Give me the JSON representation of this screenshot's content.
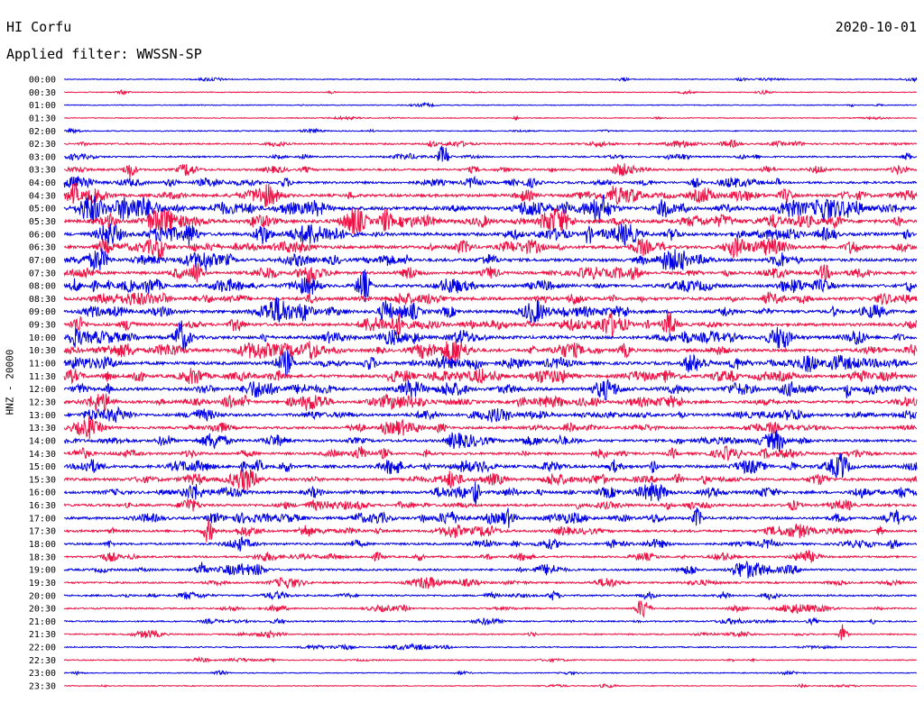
{
  "header": {
    "station": "HI Corfu",
    "date": "2020-10-01",
    "filter_label": "Applied filter: WWSSN-SP",
    "channel_label": "HNZ - 20000"
  },
  "chart_data": {
    "type": "helicorder",
    "title": "HI Corfu",
    "subtitle": "Applied filter: WWSSN-SP",
    "ylabel": "HNZ - 20000",
    "colors": [
      "#0000e6",
      "#ee1144"
    ],
    "rows": [
      {
        "label": "00:00",
        "activity": 0.05
      },
      {
        "label": "00:30",
        "activity": 0.02
      },
      {
        "label": "01:00",
        "activity": 0.02
      },
      {
        "label": "01:30",
        "activity": 0.02
      },
      {
        "label": "02:00",
        "activity": 0.08
      },
      {
        "label": "02:30",
        "activity": 0.3
      },
      {
        "label": "03:00",
        "activity": 0.3
      },
      {
        "label": "03:30",
        "activity": 0.45
      },
      {
        "label": "04:00",
        "activity": 0.55
      },
      {
        "label": "04:30",
        "activity": 0.75
      },
      {
        "label": "05:00",
        "activity": 1.0
      },
      {
        "label": "05:30",
        "activity": 0.95
      },
      {
        "label": "06:00",
        "activity": 0.85
      },
      {
        "label": "06:30",
        "activity": 0.85
      },
      {
        "label": "07:00",
        "activity": 0.8
      },
      {
        "label": "07:30",
        "activity": 0.75
      },
      {
        "label": "08:00",
        "activity": 0.8
      },
      {
        "label": "08:30",
        "activity": 0.8
      },
      {
        "label": "09:00",
        "activity": 0.85
      },
      {
        "label": "09:30",
        "activity": 0.8
      },
      {
        "label": "10:00",
        "activity": 0.85
      },
      {
        "label": "10:30",
        "activity": 0.8
      },
      {
        "label": "11:00",
        "activity": 0.85
      },
      {
        "label": "11:30",
        "activity": 0.8
      },
      {
        "label": "12:00",
        "activity": 0.8
      },
      {
        "label": "12:30",
        "activity": 0.7
      },
      {
        "label": "13:00",
        "activity": 0.7
      },
      {
        "label": "13:30",
        "activity": 0.6
      },
      {
        "label": "14:00",
        "activity": 0.65
      },
      {
        "label": "14:30",
        "activity": 0.6
      },
      {
        "label": "15:00",
        "activity": 0.75
      },
      {
        "label": "15:30",
        "activity": 0.7
      },
      {
        "label": "16:00",
        "activity": 0.7
      },
      {
        "label": "16:30",
        "activity": 0.65
      },
      {
        "label": "17:00",
        "activity": 0.65
      },
      {
        "label": "17:30",
        "activity": 0.55
      },
      {
        "label": "18:00",
        "activity": 0.5
      },
      {
        "label": "18:30",
        "activity": 0.4
      },
      {
        "label": "19:00",
        "activity": 0.45
      },
      {
        "label": "19:30",
        "activity": 0.35
      },
      {
        "label": "20:00",
        "activity": 0.35
      },
      {
        "label": "20:30",
        "activity": 0.25
      },
      {
        "label": "21:00",
        "activity": 0.25
      },
      {
        "label": "21:30",
        "activity": 0.2
      },
      {
        "label": "22:00",
        "activity": 0.15
      },
      {
        "label": "22:30",
        "activity": 0.1
      },
      {
        "label": "23:00",
        "activity": 0.05
      },
      {
        "label": "23:30",
        "activity": 0.05
      }
    ],
    "grid": false,
    "legend": "none"
  }
}
